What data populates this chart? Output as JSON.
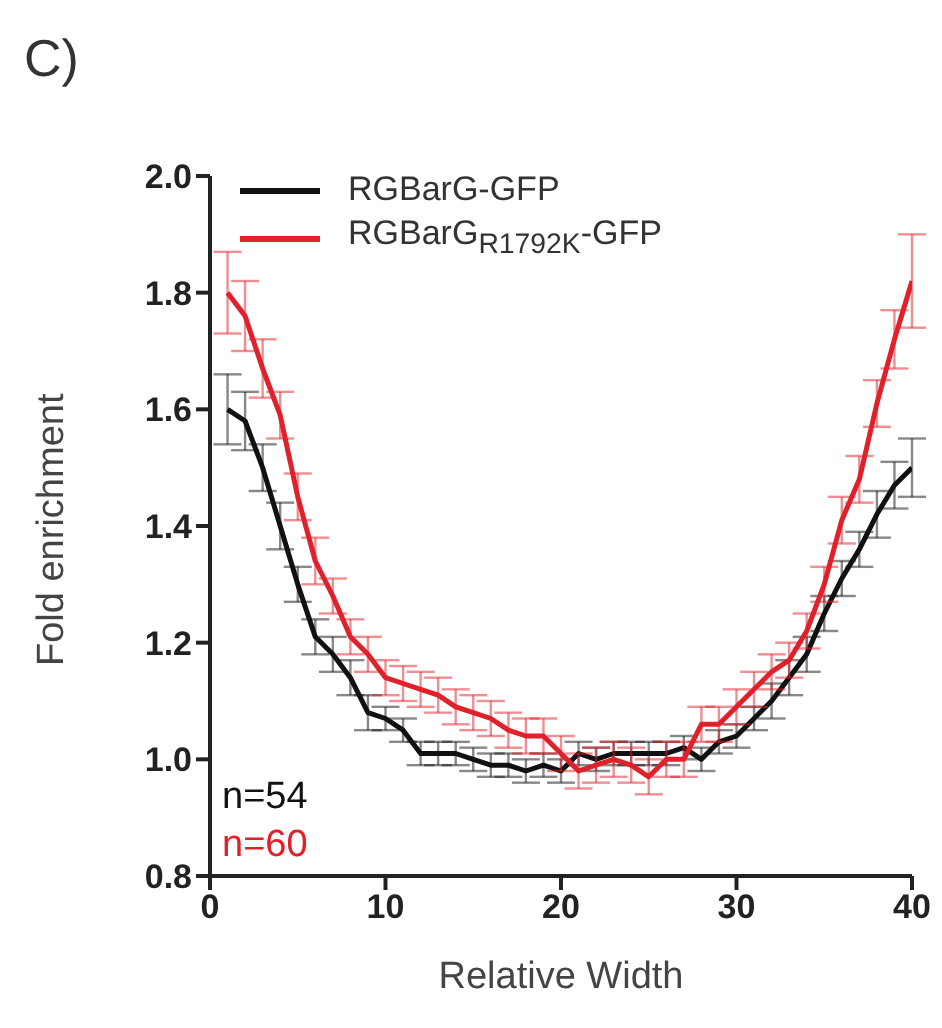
{
  "chart_data": {
    "type": "line",
    "title": "C)",
    "xlabel": "Relative Width",
    "ylabel": "Fold enrichment",
    "x": [
      1,
      2,
      3,
      4,
      5,
      6,
      7,
      8,
      9,
      10,
      11,
      12,
      13,
      14,
      15,
      16,
      17,
      18,
      19,
      20,
      21,
      22,
      23,
      24,
      25,
      26,
      27,
      28,
      29,
      30,
      31,
      32,
      33,
      34,
      35,
      36,
      37,
      38,
      39,
      40
    ],
    "series": [
      {
        "name": "RGBarG-GFP",
        "color": "#111111",
        "values": [
          1.6,
          1.58,
          1.5,
          1.4,
          1.3,
          1.21,
          1.18,
          1.14,
          1.08,
          1.07,
          1.05,
          1.01,
          1.01,
          1.01,
          1.0,
          0.99,
          0.99,
          0.98,
          0.99,
          0.98,
          1.01,
          1.0,
          1.01,
          1.01,
          1.01,
          1.01,
          1.02,
          1.0,
          1.03,
          1.04,
          1.07,
          1.1,
          1.14,
          1.18,
          1.25,
          1.31,
          1.36,
          1.42,
          1.47,
          1.5
        ],
        "errors": [
          0.06,
          0.05,
          0.04,
          0.04,
          0.03,
          0.03,
          0.03,
          0.03,
          0.03,
          0.02,
          0.02,
          0.02,
          0.02,
          0.02,
          0.02,
          0.02,
          0.02,
          0.02,
          0.02,
          0.02,
          0.02,
          0.02,
          0.02,
          0.02,
          0.02,
          0.02,
          0.02,
          0.02,
          0.02,
          0.02,
          0.02,
          0.03,
          0.03,
          0.03,
          0.03,
          0.03,
          0.03,
          0.04,
          0.04,
          0.05
        ]
      },
      {
        "name": "RGBarG$_{R1792K}$-GFP",
        "color": "#e0202a",
        "values": [
          1.8,
          1.76,
          1.67,
          1.59,
          1.45,
          1.34,
          1.28,
          1.21,
          1.18,
          1.14,
          1.13,
          1.12,
          1.11,
          1.09,
          1.08,
          1.07,
          1.05,
          1.04,
          1.04,
          1.01,
          0.98,
          0.99,
          1.0,
          0.99,
          0.97,
          1.0,
          1.0,
          1.06,
          1.06,
          1.09,
          1.12,
          1.15,
          1.17,
          1.22,
          1.3,
          1.41,
          1.48,
          1.61,
          1.72,
          1.82
        ],
        "errors": [
          0.07,
          0.06,
          0.05,
          0.04,
          0.04,
          0.04,
          0.03,
          0.03,
          0.03,
          0.03,
          0.03,
          0.03,
          0.03,
          0.03,
          0.03,
          0.03,
          0.03,
          0.03,
          0.03,
          0.03,
          0.03,
          0.03,
          0.03,
          0.03,
          0.03,
          0.03,
          0.03,
          0.03,
          0.03,
          0.03,
          0.03,
          0.03,
          0.03,
          0.03,
          0.03,
          0.04,
          0.04,
          0.04,
          0.05,
          0.08
        ]
      }
    ],
    "xlim": [
      0,
      40
    ],
    "xticks": [
      0,
      10,
      20,
      30,
      40
    ],
    "ylim": [
      0.8,
      2.0
    ],
    "yticks": [
      {
        "value": 0.8,
        "label": "0.8"
      },
      {
        "value": 1.0,
        "label": "1.0"
      },
      {
        "value": 1.2,
        "label": "1.2"
      },
      {
        "value": 1.4,
        "label": "1.4"
      },
      {
        "value": 1.6,
        "label": "1.6"
      },
      {
        "value": 1.8,
        "label": "1.8"
      },
      {
        "value": 2.0,
        "label": "2.0"
      }
    ],
    "annotations": [
      "n=54",
      "n=60"
    ],
    "legend": "top left",
    "grid": false,
    "marker": "none",
    "line_style": "solid"
  }
}
